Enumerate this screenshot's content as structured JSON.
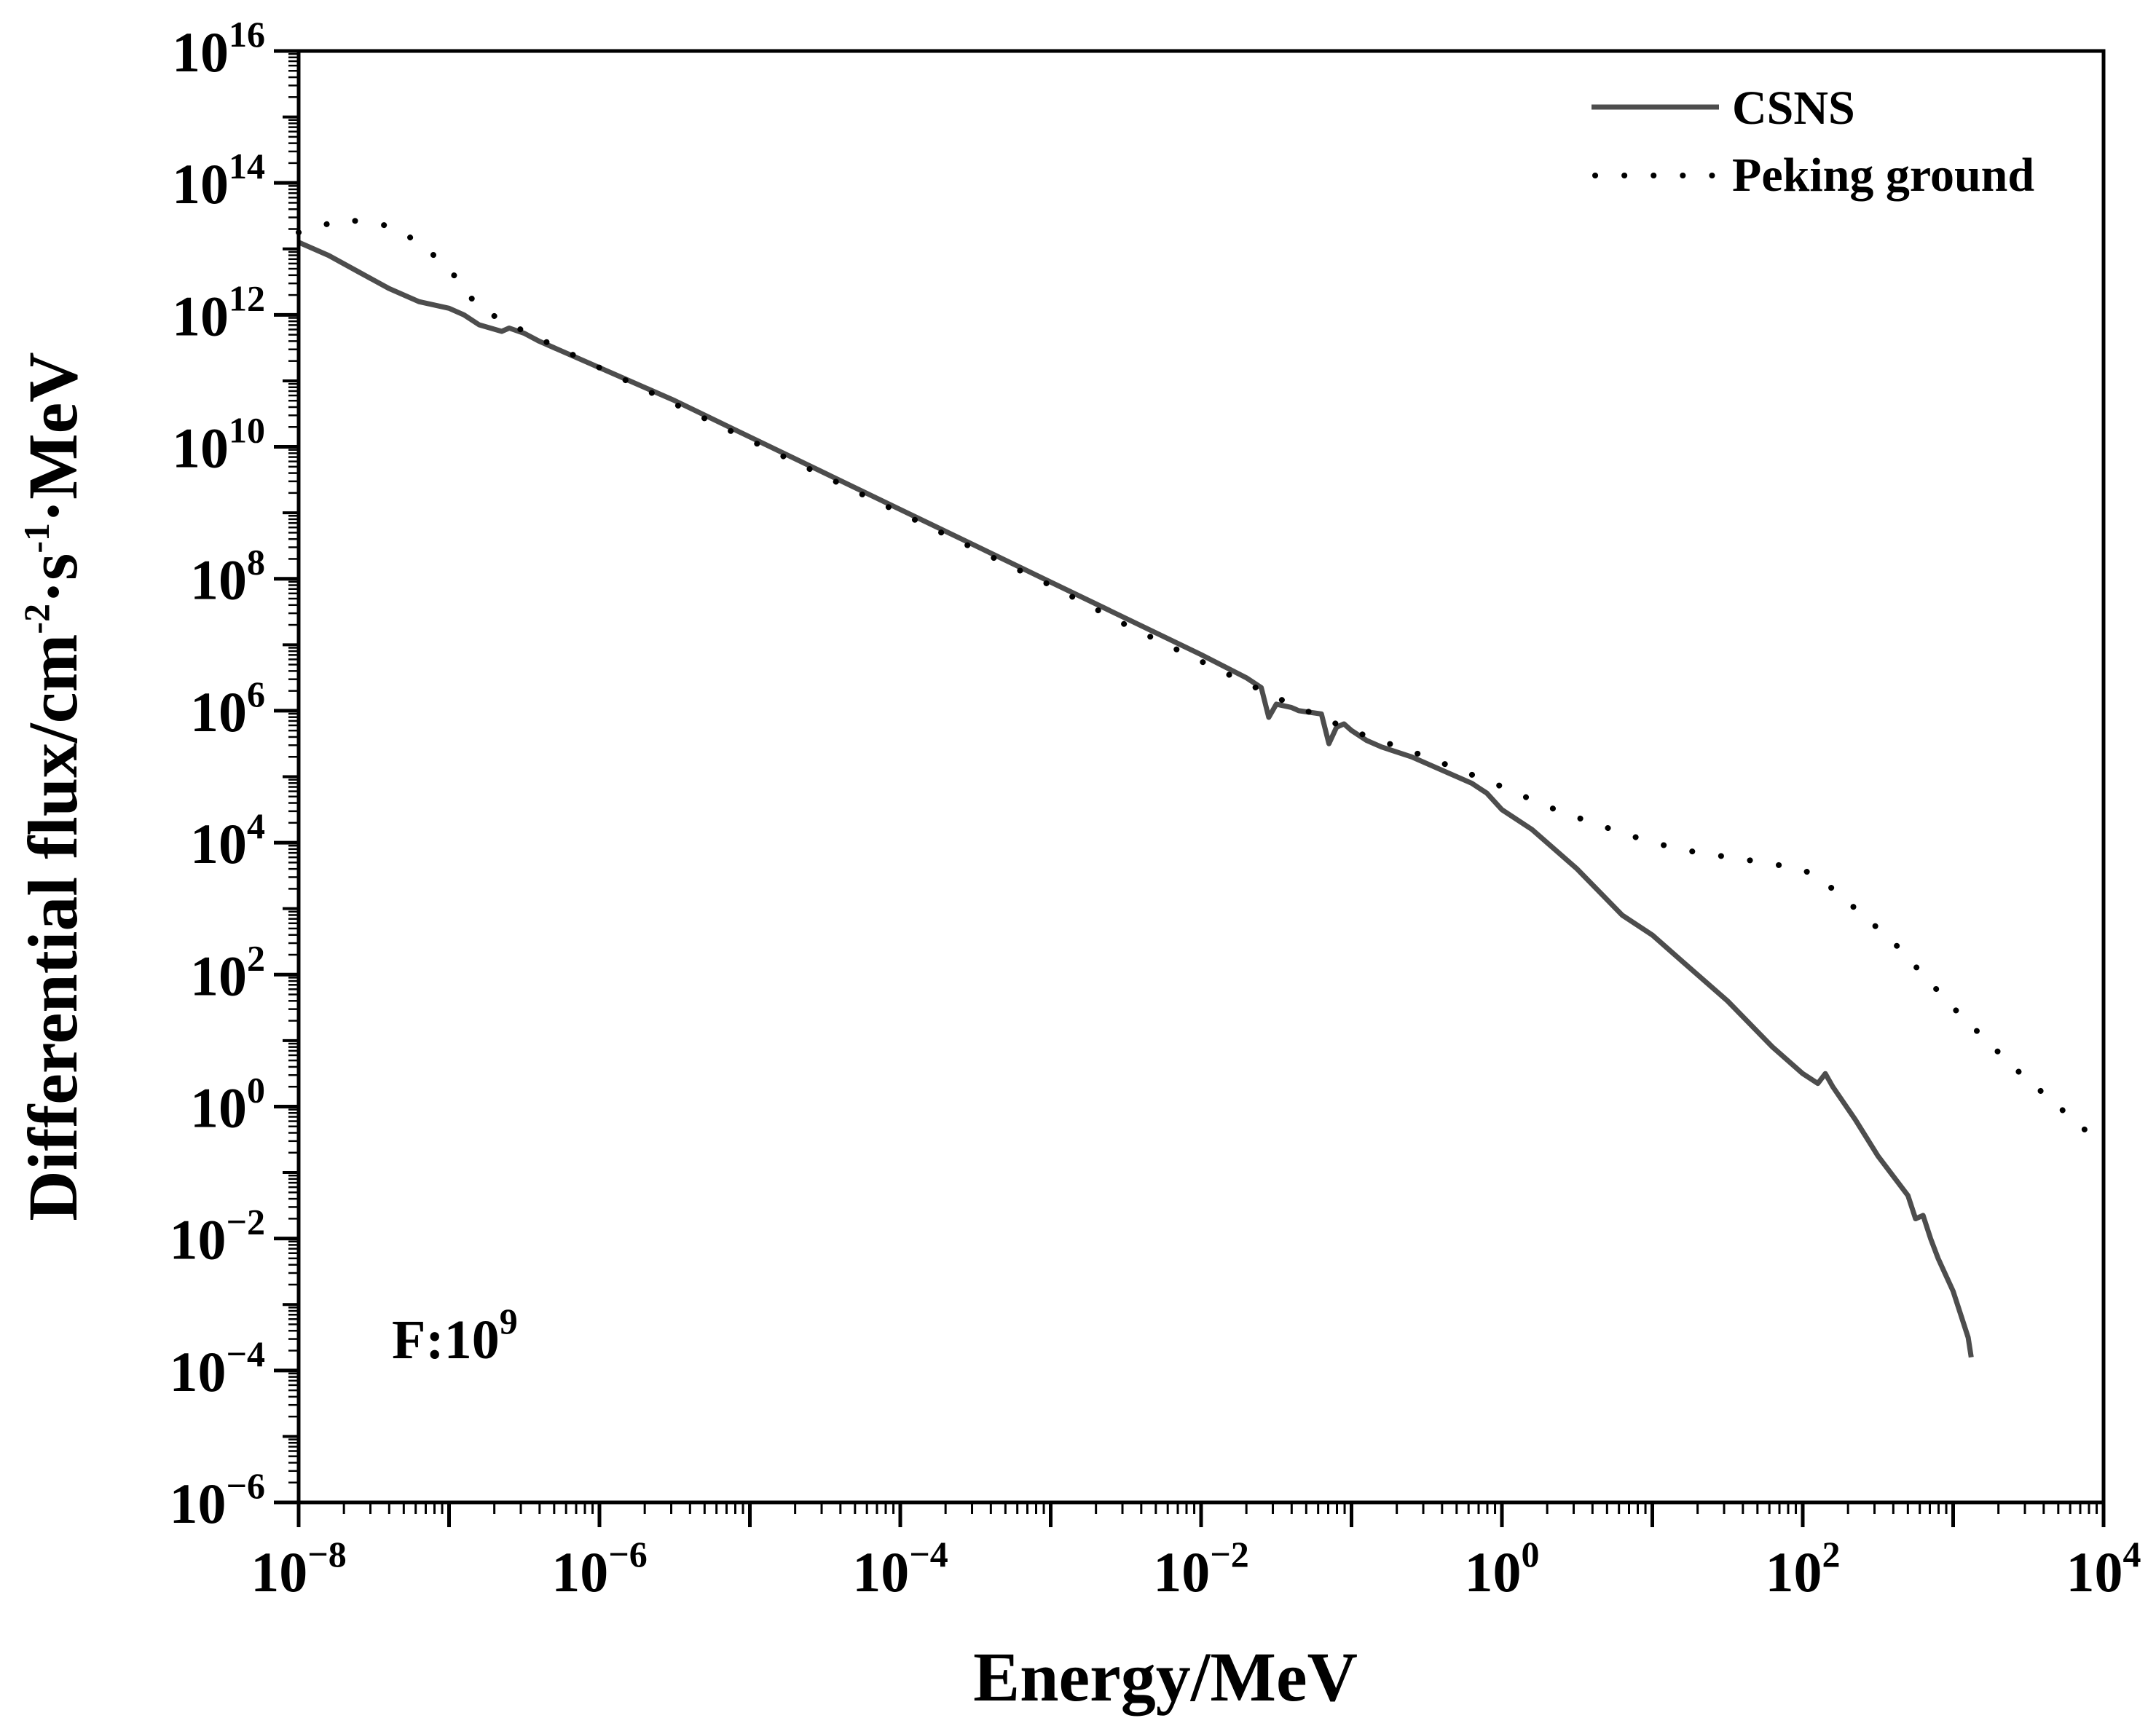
{
  "chart_data": {
    "type": "line",
    "xscale": "log",
    "yscale": "log",
    "xlim": [
      1e-08,
      10000
    ],
    "ylim": [
      1e-06,
      1e+16
    ],
    "xlabel": "Energy/MeV",
    "ylabel": {
      "base": "Differential flux/cm",
      "exp1": "-2",
      "mid": "·s",
      "exp2": "-1",
      "tail": "·MeV"
    },
    "annotation": {
      "base": "F:10",
      "exp": "9"
    },
    "legend_position": "top-right",
    "x_ticks": [
      {
        "base": "10",
        "exp": "−8"
      },
      {
        "base": "10",
        "exp": "−6"
      },
      {
        "base": "10",
        "exp": "−4"
      },
      {
        "base": "10",
        "exp": "−2"
      },
      {
        "base": "10",
        "exp": "0"
      },
      {
        "base": "10",
        "exp": "2"
      },
      {
        "base": "10",
        "exp": "4"
      }
    ],
    "y_ticks": [
      {
        "base": "10",
        "exp": "−6"
      },
      {
        "base": "10",
        "exp": "−4"
      },
      {
        "base": "10",
        "exp": "−2"
      },
      {
        "base": "10",
        "exp": "0"
      },
      {
        "base": "10",
        "exp": "2"
      },
      {
        "base": "10",
        "exp": "4"
      },
      {
        "base": "10",
        "exp": "6"
      },
      {
        "base": "10",
        "exp": "8"
      },
      {
        "base": "10",
        "exp": "10"
      },
      {
        "base": "10",
        "exp": "12"
      },
      {
        "base": "10",
        "exp": "14"
      },
      {
        "base": "10",
        "exp": "16"
      }
    ],
    "series": [
      {
        "name": "CSNS",
        "style": "solid",
        "color": "#4d4d4d",
        "x_log10": [
          -8,
          -7.8,
          -7.6,
          -7.4,
          -7.2,
          -7.0,
          -6.9,
          -6.8,
          -6.65,
          -6.6,
          -6.5,
          -6.4,
          -6.2,
          -6.0,
          -5.5,
          -5.0,
          -4.5,
          -4.0,
          -3.5,
          -3.0,
          -2.5,
          -2.0,
          -1.7,
          -1.6,
          -1.55,
          -1.5,
          -1.4,
          -1.35,
          -1.2,
          -1.15,
          -1.1,
          -1.05,
          -1.0,
          -0.9,
          -0.8,
          -0.6,
          -0.4,
          -0.2,
          -0.1,
          0.0,
          0.2,
          0.5,
          0.8,
          1.0,
          1.2,
          1.5,
          1.8,
          2.0,
          2.1,
          2.15,
          2.2,
          2.35,
          2.5,
          2.7,
          2.75,
          2.8,
          2.85,
          2.9,
          3.0,
          3.1,
          3.12
        ],
        "y_log10": [
          13.1,
          12.9,
          12.65,
          12.4,
          12.2,
          12.1,
          12.0,
          11.85,
          11.75,
          11.8,
          11.72,
          11.6,
          11.4,
          11.2,
          10.7,
          10.15,
          9.6,
          9.05,
          8.5,
          7.95,
          7.4,
          6.85,
          6.5,
          6.35,
          5.9,
          6.1,
          6.05,
          6.0,
          5.95,
          5.5,
          5.75,
          5.8,
          5.7,
          5.55,
          5.45,
          5.3,
          5.1,
          4.9,
          4.75,
          4.5,
          4.2,
          3.6,
          2.9,
          2.6,
          2.2,
          1.6,
          0.9,
          0.5,
          0.35,
          0.5,
          0.3,
          -0.2,
          -0.75,
          -1.35,
          -1.7,
          -1.65,
          -2.0,
          -2.3,
          -2.8,
          -3.5,
          -3.8
        ]
      },
      {
        "name": "Peking ground",
        "style": "dotted",
        "color": "#000000",
        "x_log10": [
          -8,
          -7.7,
          -7.4,
          -7.2,
          -7.0,
          -6.8,
          -6.5,
          -6.0,
          -5.5,
          -5.0,
          -4.5,
          -4.0,
          -3.5,
          -3.0,
          -2.5,
          -2.0,
          -1.5,
          -1.0,
          -0.5,
          0.0,
          0.3,
          0.6,
          1.0,
          1.3,
          1.6,
          2.0,
          2.2,
          2.4,
          2.6,
          2.8,
          3.0,
          3.2,
          3.4,
          3.6,
          3.8,
          4.0
        ],
        "y_log10": [
          13.25,
          13.45,
          13.35,
          13.1,
          12.7,
          12.1,
          11.75,
          11.2,
          10.65,
          10.1,
          9.55,
          9.0,
          8.45,
          7.9,
          7.3,
          6.75,
          6.2,
          5.7,
          5.3,
          4.85,
          4.55,
          4.3,
          4.0,
          3.85,
          3.75,
          3.6,
          3.3,
          2.9,
          2.5,
          2.0,
          1.5,
          1.05,
          0.6,
          0.2,
          -0.2,
          -0.6
        ]
      }
    ]
  }
}
